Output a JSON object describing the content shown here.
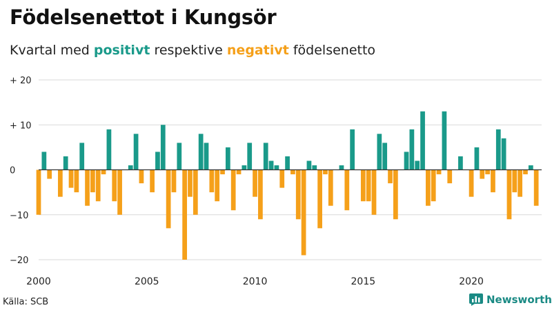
{
  "title": "Födelsenettot i Kungsör",
  "subtitle": {
    "prefix": "Kvartal med ",
    "positive": "positivt",
    "middle": " respektive ",
    "negative": "negativt",
    "suffix": " födelsenetto"
  },
  "colors": {
    "positive": "#1a9a8a",
    "negative": "#f5a01a",
    "grid": "#d9d9d9",
    "axis": "#333333"
  },
  "source": "Källa: SCB",
  "brand": {
    "name": "Newsworthy",
    "icon": "bar-chart-icon"
  },
  "chart_data": {
    "type": "bar",
    "title": "Födelsenettot i Kungsör",
    "subtitle": "Kvartal med positivt respektive negativt födelsenetto",
    "xlabel": "",
    "ylabel": "",
    "x_start": 2000,
    "quarters_per_year": 4,
    "xlim": [
      2000,
      2023.25
    ],
    "x_ticks": [
      2000,
      2005,
      2010,
      2015,
      2020
    ],
    "x_tick_labels": [
      "2000",
      "2005",
      "2010",
      "2015",
      "2020"
    ],
    "ylim": [
      -20,
      20
    ],
    "y_ticks": [
      -20,
      -10,
      0,
      10,
      20
    ],
    "y_tick_labels": [
      "−20",
      "−10",
      "0",
      "+ 10",
      "+ 20"
    ],
    "grid": true,
    "values": [
      -10,
      4,
      -2,
      0,
      -6,
      3,
      -4,
      -5,
      6,
      -8,
      -5,
      -7,
      -1,
      9,
      -7,
      -10,
      0,
      1,
      8,
      -3,
      0,
      -5,
      4,
      10,
      -13,
      -5,
      6,
      -20,
      -6,
      -10,
      8,
      6,
      -5,
      -7,
      -1,
      5,
      -9,
      -1,
      1,
      6,
      -6,
      -11,
      6,
      2,
      1,
      -4,
      3,
      -1,
      -11,
      -19,
      2,
      1,
      -13,
      -1,
      -8,
      0,
      1,
      -9,
      9,
      0,
      -7,
      -7,
      -10,
      8,
      6,
      -3,
      -11,
      0,
      4,
      9,
      2,
      13,
      -8,
      -7,
      -1,
      13,
      -3,
      0,
      3,
      0,
      -6,
      5,
      -2,
      -1,
      -5,
      9,
      7,
      -11,
      -5,
      -6,
      -1,
      1,
      -8
    ]
  }
}
